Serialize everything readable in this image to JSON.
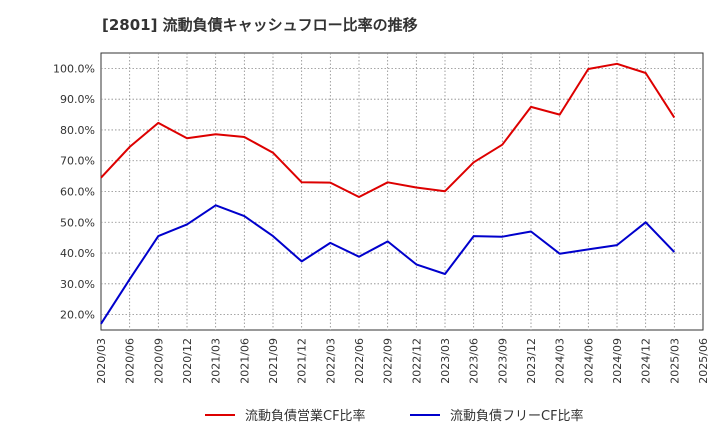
{
  "chart_data": {
    "type": "line",
    "title": "[2801]  流動負債キャッシュフロー比率の推移",
    "xlabel": "",
    "ylabel": "",
    "x": [
      "2020/03",
      "2020/06",
      "2020/09",
      "2020/12",
      "2021/03",
      "2021/06",
      "2021/09",
      "2021/12",
      "2022/03",
      "2022/06",
      "2022/09",
      "2022/12",
      "2023/03",
      "2023/06",
      "2023/09",
      "2023/12",
      "2024/03",
      "2024/06",
      "2024/09",
      "2024/12",
      "2025/03",
      "2025/06"
    ],
    "y_ticks": [
      "20.0%",
      "30.0%",
      "40.0%",
      "50.0%",
      "60.0%",
      "70.0%",
      "80.0%",
      "90.0%",
      "100.0%"
    ],
    "ylim": [
      15,
      105
    ],
    "grid": true,
    "legend_position": "bottom",
    "series": [
      {
        "name": "流動負債営業CF比率",
        "color": "#dd0000",
        "values": [
          64.5,
          74.5,
          82.3,
          77.3,
          78.6,
          77.7,
          72.6,
          63.0,
          62.9,
          58.2,
          63.0,
          61.3,
          60.1,
          69.5,
          75.2,
          87.5,
          85.0,
          99.8,
          101.5,
          98.5,
          84.0,
          null
        ]
      },
      {
        "name": "流動負債フリーCF比率",
        "color": "#0000cc",
        "values": [
          17.0,
          31.5,
          45.5,
          49.3,
          55.5,
          52.0,
          45.5,
          37.3,
          43.3,
          38.8,
          43.8,
          36.3,
          33.2,
          45.5,
          45.3,
          47.0,
          39.8,
          41.2,
          42.6,
          50.0,
          40.3,
          null
        ]
      }
    ]
  }
}
